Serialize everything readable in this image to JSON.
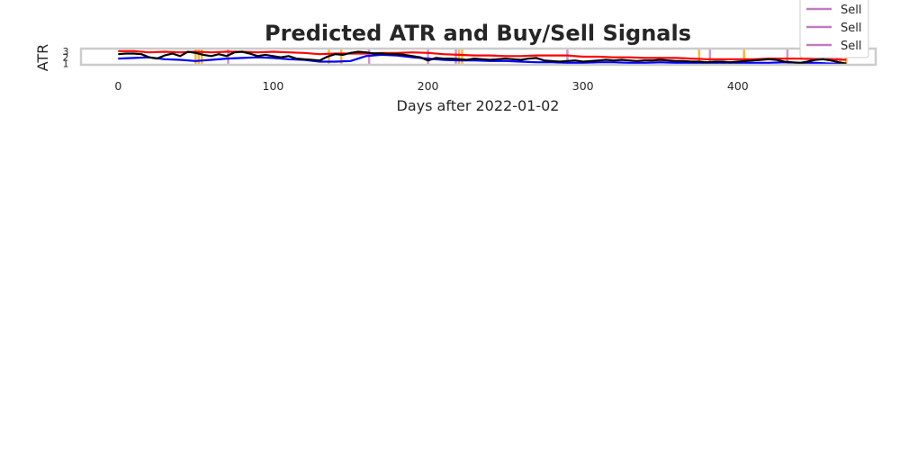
{
  "chart_data": {
    "type": "line",
    "title": "Predicted ATR and Buy/Sell Signals",
    "xlabel": "Days after 2022-01-02",
    "ylabel": "ATR",
    "xlim": [
      -24,
      489
    ],
    "ylim": [
      0.8,
      3.4
    ],
    "xticks": [
      0,
      100,
      200,
      300,
      400
    ],
    "yticks": [
      1,
      2,
      3
    ],
    "grid": false,
    "legend": {
      "placement": "top-right",
      "entries": [
        "Sell",
        "Sell",
        "Sell"
      ],
      "color": "#c27bc2"
    },
    "series": [
      {
        "color": "#ff0000",
        "x": [
          0,
          10,
          20,
          30,
          40,
          50,
          60,
          70,
          80,
          90,
          100,
          110,
          120,
          130,
          140,
          150,
          160,
          170,
          180,
          190,
          200,
          210,
          220,
          230,
          240,
          250,
          260,
          270,
          280,
          290,
          300,
          310,
          320,
          330,
          340,
          350,
          360,
          370,
          380,
          390,
          400,
          410,
          420,
          430,
          440,
          450,
          460,
          470
        ],
        "y": [
          3.0,
          3.0,
          2.8,
          2.9,
          2.8,
          2.9,
          2.8,
          2.9,
          2.9,
          2.8,
          2.9,
          2.8,
          2.7,
          2.5,
          2.6,
          2.6,
          2.6,
          2.7,
          2.7,
          2.8,
          2.7,
          2.5,
          2.4,
          2.3,
          2.3,
          2.2,
          2.2,
          2.3,
          2.3,
          2.3,
          2.1,
          2.1,
          2.0,
          2.0,
          1.9,
          1.9,
          1.9,
          1.8,
          1.7,
          1.7,
          1.7,
          1.7,
          1.8,
          1.8,
          1.8,
          1.7,
          1.7,
          1.6
        ]
      },
      {
        "color": "#0000ff",
        "x": [
          0,
          10,
          20,
          30,
          40,
          50,
          60,
          70,
          80,
          90,
          100,
          110,
          120,
          130,
          140,
          150,
          160,
          170,
          180,
          190,
          200,
          210,
          220,
          230,
          240,
          250,
          260,
          270,
          280,
          290,
          300,
          310,
          320,
          330,
          340,
          350,
          360,
          370,
          380,
          390,
          400,
          410,
          420,
          430,
          440,
          450,
          460,
          470
        ],
        "y": [
          1.8,
          1.9,
          2.0,
          1.7,
          1.6,
          1.4,
          1.6,
          1.8,
          1.9,
          2.0,
          1.9,
          1.7,
          1.6,
          1.3,
          1.3,
          1.4,
          2.2,
          2.4,
          2.3,
          2.0,
          1.8,
          1.6,
          1.5,
          1.5,
          1.4,
          1.4,
          1.3,
          1.2,
          1.2,
          1.1,
          1.1,
          1.2,
          1.2,
          1.1,
          1.1,
          1.2,
          1.1,
          1.1,
          1.0,
          1.1,
          1.1,
          1.1,
          1.1,
          1.2,
          1.1,
          1.1,
          1.0,
          0.9
        ]
      },
      {
        "color": "#000000",
        "x": [
          0,
          5,
          10,
          15,
          20,
          25,
          30,
          35,
          40,
          45,
          50,
          55,
          60,
          65,
          70,
          75,
          80,
          85,
          90,
          95,
          100,
          105,
          110,
          115,
          120,
          125,
          130,
          135,
          140,
          145,
          150,
          155,
          160,
          165,
          170,
          175,
          180,
          185,
          190,
          195,
          200,
          205,
          210,
          215,
          220,
          225,
          230,
          235,
          240,
          245,
          250,
          255,
          260,
          265,
          270,
          275,
          280,
          285,
          290,
          295,
          300,
          305,
          310,
          315,
          320,
          325,
          330,
          335,
          340,
          345,
          350,
          355,
          360,
          365,
          370,
          375,
          380,
          385,
          390,
          395,
          400,
          405,
          410,
          415,
          420,
          425,
          430,
          435,
          440,
          445,
          450,
          455,
          460,
          465,
          470
        ],
        "y": [
          2.5,
          2.6,
          2.6,
          2.5,
          2.0,
          1.8,
          2.3,
          2.6,
          2.2,
          2.9,
          2.7,
          2.4,
          2.2,
          2.5,
          2.2,
          2.8,
          2.9,
          2.6,
          2.2,
          2.4,
          2.2,
          2.0,
          2.2,
          1.8,
          1.7,
          1.6,
          1.5,
          2.1,
          2.5,
          2.4,
          2.7,
          2.9,
          2.8,
          2.6,
          2.6,
          2.5,
          2.5,
          2.4,
          2.2,
          2.0,
          1.5,
          1.9,
          1.8,
          1.8,
          1.7,
          1.6,
          1.8,
          1.7,
          1.6,
          1.7,
          1.8,
          1.7,
          1.6,
          1.8,
          1.9,
          1.5,
          1.4,
          1.3,
          1.4,
          1.5,
          1.3,
          1.4,
          1.5,
          1.6,
          1.5,
          1.6,
          1.5,
          1.4,
          1.5,
          1.5,
          1.6,
          1.5,
          1.4,
          1.4,
          1.3,
          1.3,
          1.2,
          1.3,
          1.3,
          1.2,
          1.3,
          1.4,
          1.5,
          1.6,
          1.7,
          1.6,
          1.3,
          1.2,
          1.1,
          1.3,
          1.6,
          1.7,
          1.5,
          1.2,
          1.0
        ]
      }
    ],
    "buy_signals": {
      "color": "#ffa500",
      "x": [
        50,
        52,
        54,
        136,
        144,
        220,
        222,
        375,
        404,
        466,
        470
      ]
    },
    "sell_signals": {
      "color": "#c27bc2",
      "x": [
        71,
        162,
        200,
        218,
        290,
        382,
        432,
        464
      ]
    }
  }
}
